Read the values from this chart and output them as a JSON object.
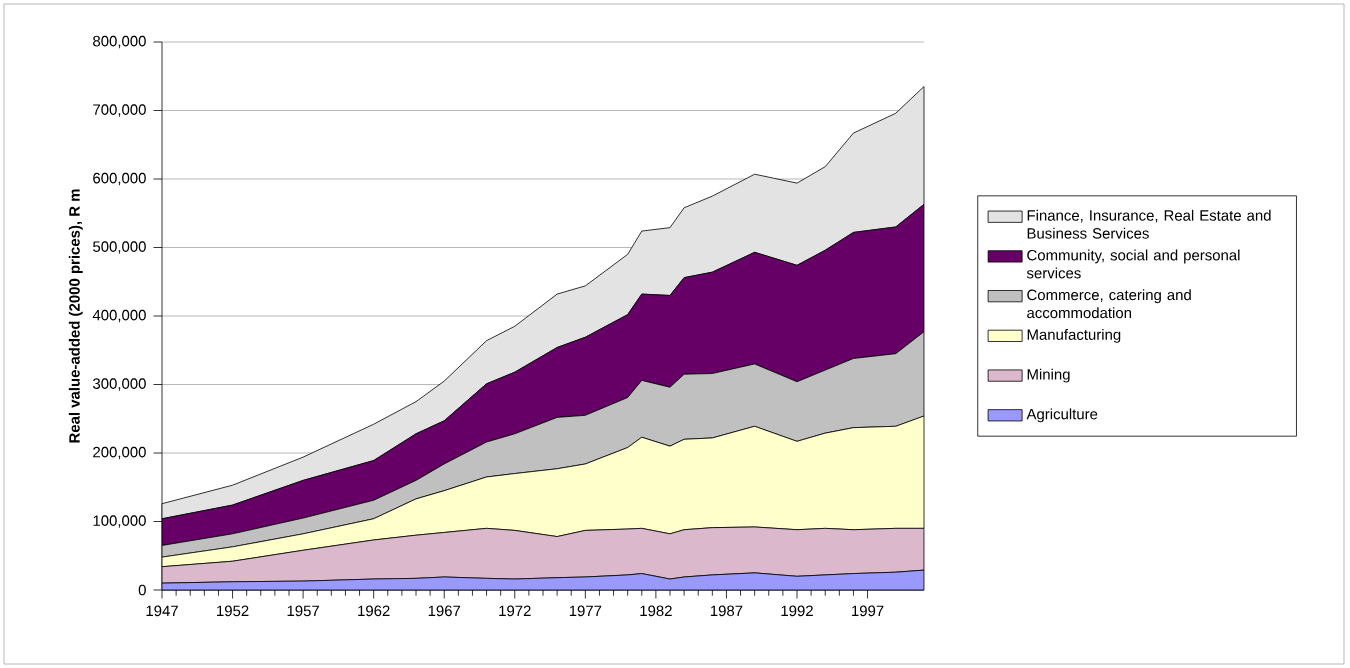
{
  "chart_data": {
    "type": "area",
    "stacked": true,
    "ylabel": "Real value-added (2000 prices), R m",
    "x": [
      1947,
      1952,
      1957,
      1962,
      1965,
      1967,
      1970,
      1972,
      1975,
      1977,
      1980,
      1981,
      1983,
      1984,
      1986,
      1989,
      1992,
      1994,
      1996,
      1999,
      2001
    ],
    "series": [
      {
        "name": "Agriculture",
        "color": "#9999ff",
        "values": [
          10000,
          12000,
          13000,
          16000,
          17000,
          19000,
          17000,
          16000,
          18000,
          19000,
          22000,
          24000,
          16000,
          19000,
          22000,
          25000,
          20000,
          22000,
          24000,
          26000,
          29000
        ]
      },
      {
        "name": "Mining",
        "color": "#dcb8cc",
        "values": [
          24000,
          30000,
          45000,
          57000,
          63000,
          65000,
          73000,
          71000,
          60000,
          68000,
          67000,
          66000,
          66000,
          69000,
          69000,
          67000,
          68000,
          68000,
          64000,
          64000,
          61000
        ]
      },
      {
        "name": "Manufacturing",
        "color": "#ffffcc",
        "values": [
          14000,
          21000,
          24000,
          31000,
          53000,
          61000,
          75000,
          83000,
          99000,
          97000,
          119000,
          133000,
          128000,
          132000,
          131000,
          147000,
          129000,
          139000,
          149000,
          149000,
          164000
        ]
      },
      {
        "name": "Commerce, catering and accommodation",
        "color": "#c0c0c0",
        "values": [
          17000,
          19000,
          23000,
          27000,
          27000,
          39000,
          51000,
          58000,
          75000,
          71000,
          73000,
          83000,
          86000,
          95000,
          94000,
          91000,
          87000,
          92000,
          101000,
          106000,
          123000
        ]
      },
      {
        "name": "Community, social and personal services",
        "color": "#660066",
        "values": [
          39000,
          42000,
          55000,
          58000,
          68000,
          63000,
          85000,
          90000,
          102000,
          114000,
          121000,
          126000,
          134000,
          141000,
          148000,
          163000,
          170000,
          175000,
          184000,
          185000,
          186000
        ]
      },
      {
        "name": "Finance, Insurance, Real Estate and Business Services",
        "color": "#e3e3e3",
        "values": [
          22000,
          29000,
          34000,
          53000,
          47000,
          58000,
          63000,
          67000,
          78000,
          75000,
          88000,
          92000,
          99000,
          102000,
          111000,
          114000,
          120000,
          122000,
          145000,
          166000,
          172000
        ]
      }
    ],
    "xlim": [
      1947,
      2001
    ],
    "xticks": [
      1947,
      1952,
      1957,
      1962,
      1967,
      1972,
      1977,
      1982,
      1987,
      1992,
      1997
    ],
    "ylim": [
      0,
      800000
    ],
    "yticks": [
      0,
      {
        "value": 100000,
        "label": "100,000"
      },
      {
        "value": 200000,
        "label": "200,000"
      },
      {
        "value": 300000,
        "label": "300,000"
      },
      {
        "value": 400000,
        "label": "400,000"
      },
      {
        "value": 500000,
        "label": "500,000"
      },
      {
        "value": 600000,
        "label": "600,000"
      },
      {
        "value": 700000,
        "label": "700,000"
      },
      {
        "value": 800000,
        "label": "800,000"
      }
    ],
    "grid": "y",
    "legend": "right"
  }
}
